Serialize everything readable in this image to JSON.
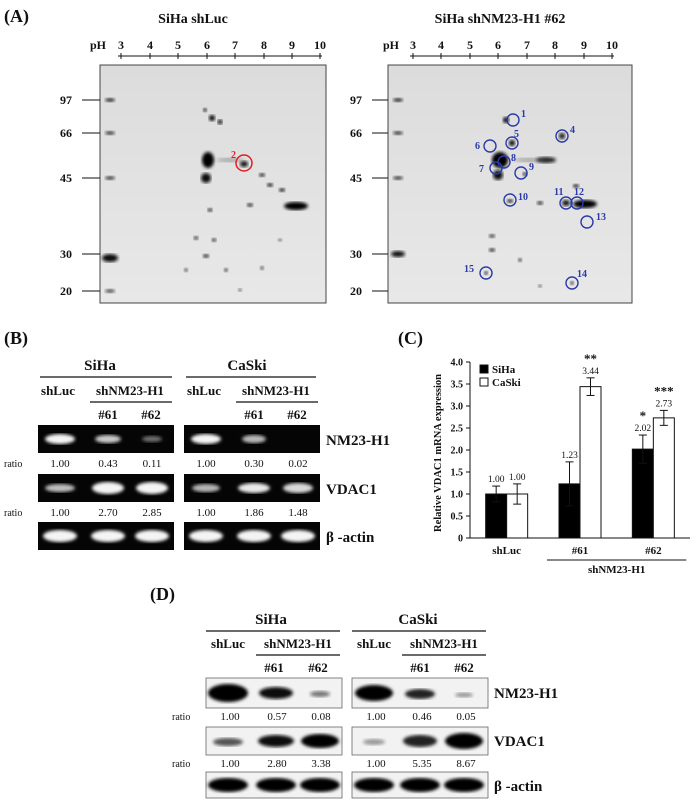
{
  "panel_a": {
    "label": "(A)",
    "gels": [
      {
        "title": "SiHa shLuc",
        "ph_label": "pH",
        "ph_ticks": [
          "3",
          "4",
          "5",
          "6",
          "7",
          "8",
          "9",
          "10"
        ],
        "mw_ticks": [
          "97",
          "66",
          "45",
          "30",
          "20"
        ],
        "circles": [
          {
            "n": "2",
            "color": "#e02020"
          }
        ]
      },
      {
        "title": "SiHa shNM23-H1 #62",
        "ph_label": "pH",
        "ph_ticks": [
          "3",
          "4",
          "5",
          "6",
          "7",
          "8",
          "9",
          "10"
        ],
        "mw_ticks": [
          "97",
          "66",
          "45",
          "30",
          "20"
        ],
        "circles": [
          {
            "n": "1",
            "color": "#2b3aa8"
          },
          {
            "n": "4",
            "color": "#2b3aa8"
          },
          {
            "n": "6",
            "color": "#2b3aa8"
          },
          {
            "n": "5",
            "color": "#2b3aa8"
          },
          {
            "n": "8",
            "color": "#2b3aa8"
          },
          {
            "n": "7",
            "color": "#2b3aa8"
          },
          {
            "n": "9",
            "color": "#2b3aa8"
          },
          {
            "n": "10",
            "color": "#2b3aa8"
          },
          {
            "n": "11",
            "color": "#2b3aa8"
          },
          {
            "n": "12",
            "color": "#2b3aa8"
          },
          {
            "n": "13",
            "color": "#2b3aa8"
          },
          {
            "n": "15",
            "color": "#2b3aa8"
          },
          {
            "n": "14",
            "color": "#2b3aa8"
          }
        ]
      }
    ]
  },
  "panel_b": {
    "label": "(B)",
    "groups": [
      {
        "cell": "SiHa",
        "ctrl": "shLuc",
        "knock": "shNM23-H1",
        "clones": [
          "#61",
          "#62"
        ],
        "nm23_ratios": [
          "1.00",
          "0.43",
          "0.11"
        ],
        "vdac1_ratios": [
          "1.00",
          "2.70",
          "2.85"
        ]
      },
      {
        "cell": "CaSki",
        "ctrl": "shLuc",
        "knock": "shNM23-H1",
        "clones": [
          "#61",
          "#62"
        ],
        "nm23_ratios": [
          "1.00",
          "0.30",
          "0.02"
        ],
        "vdac1_ratios": [
          "1.00",
          "1.86",
          "1.48"
        ]
      }
    ],
    "ratio_label": "ratio",
    "rows": [
      "NM23-H1",
      "VDAC1",
      "β -actin"
    ]
  },
  "panel_d": {
    "label": "(D)",
    "groups": [
      {
        "cell": "SiHa",
        "ctrl": "shLuc",
        "knock": "shNM23-H1",
        "clones": [
          "#61",
          "#62"
        ],
        "nm23_ratios": [
          "1.00",
          "0.57",
          "0.08"
        ],
        "vdac1_ratios": [
          "1.00",
          "2.80",
          "3.38"
        ]
      },
      {
        "cell": "CaSki",
        "ctrl": "shLuc",
        "knock": "shNM23-H1",
        "clones": [
          "#61",
          "#62"
        ],
        "nm23_ratios": [
          "1.00",
          "0.46",
          "0.05"
        ],
        "vdac1_ratios": [
          "1.00",
          "5.35",
          "8.67"
        ]
      }
    ],
    "ratio_label": "ratio",
    "rows": [
      "NM23-H1",
      "VDAC1",
      "β -actin"
    ]
  },
  "chart_data": {
    "label": "(C)",
    "type": "bar",
    "categories": [
      "shLuc",
      "#61",
      "#62"
    ],
    "group_label": "shNM23-H1",
    "ylabel": "Relative VDAC1 mRNA expression",
    "ylim": [
      0,
      4
    ],
    "yticks": [
      "0",
      "0.5",
      "1.0",
      "1.5",
      "2.0",
      "2.5",
      "3.0",
      "3.5",
      "4.0"
    ],
    "legend_position": "top-left",
    "series": [
      {
        "name": "SiHa",
        "color": "#000000",
        "values": [
          1.0,
          1.23,
          2.02
        ],
        "value_labels": [
          "1.00",
          "1.23",
          "2.02"
        ],
        "errors": [
          0.18,
          0.5,
          0.32
        ],
        "significance": [
          "",
          "",
          "*"
        ]
      },
      {
        "name": "CaSki",
        "color": "#ffffff",
        "values": [
          1.0,
          3.44,
          2.73
        ],
        "value_labels": [
          "1.00",
          "3.44",
          "2.73"
        ],
        "errors": [
          0.23,
          0.2,
          0.17
        ],
        "significance": [
          "",
          "**",
          "***"
        ]
      }
    ]
  }
}
